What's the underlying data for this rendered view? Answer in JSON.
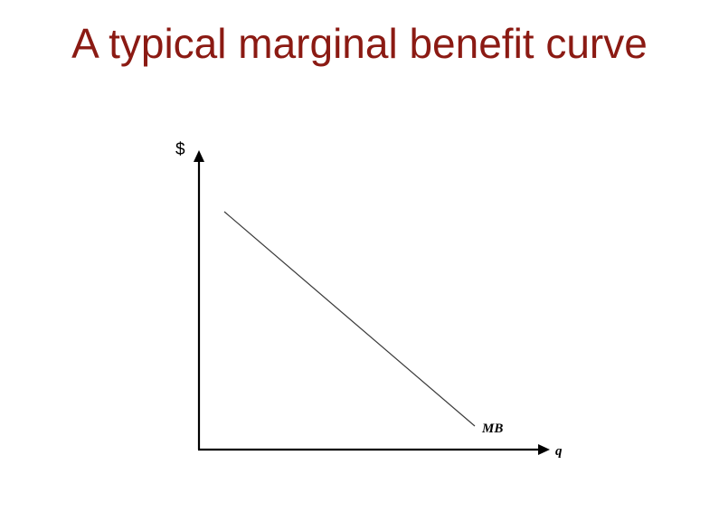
{
  "slide": {
    "title": "A typical marginal benefit curve"
  },
  "diagram": {
    "y_axis_label": "$",
    "x_axis_label": "q",
    "curve_label": "MB"
  },
  "colors": {
    "title": "#8B1A13",
    "axes": "#000000",
    "curve": "#3a3a3a"
  }
}
